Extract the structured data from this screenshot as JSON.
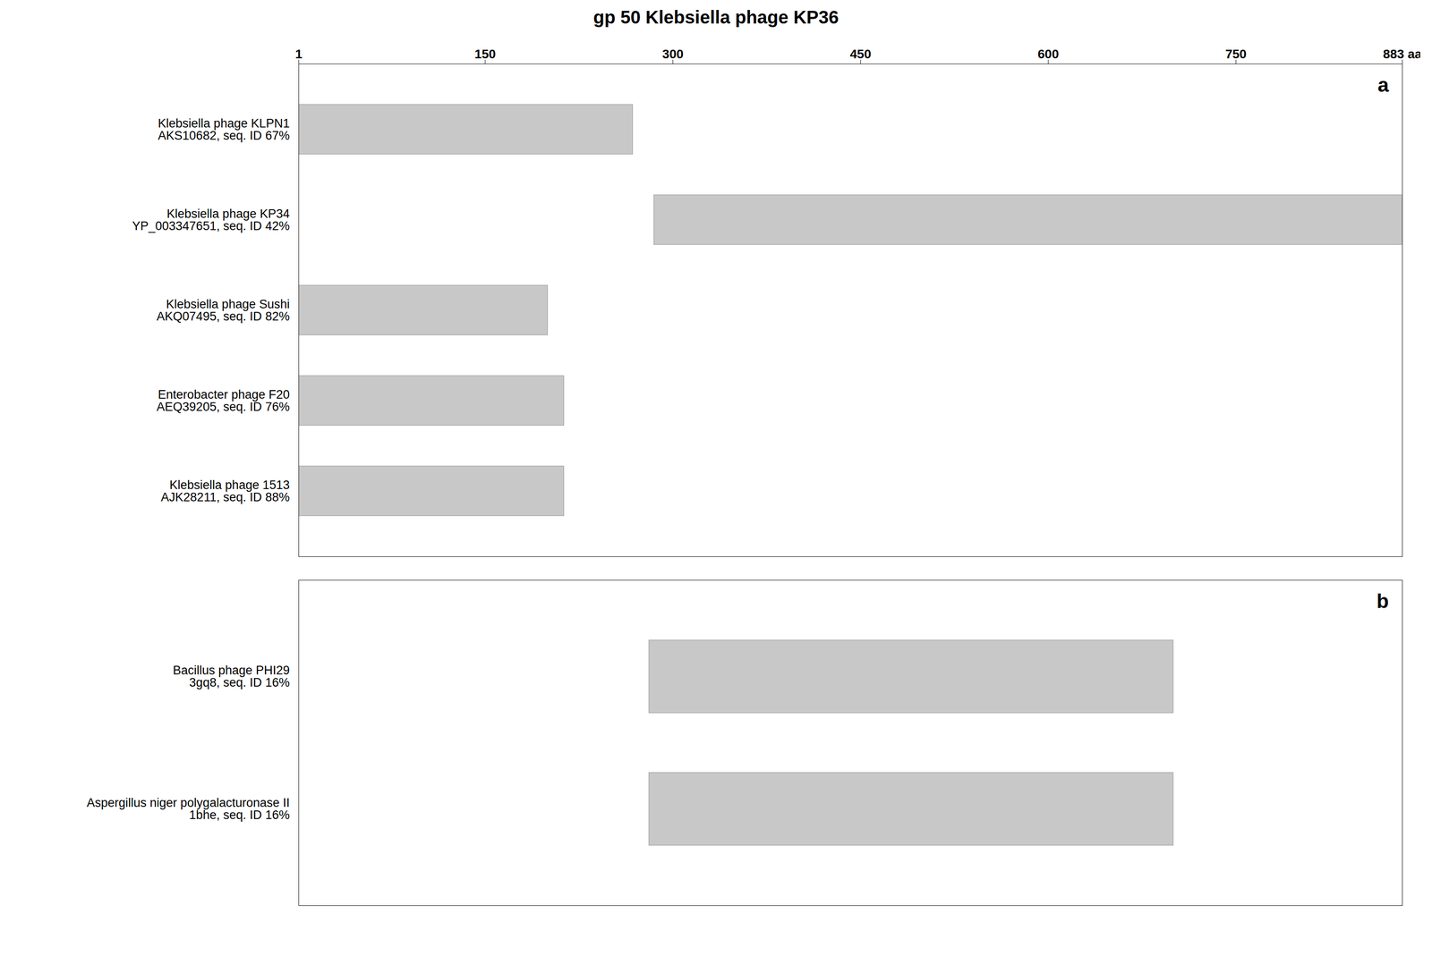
{
  "chart_data": [
    {
      "type": "bar",
      "orientation": "horizontal",
      "title": "gp 50 Klebsiella phage KP36",
      "annotation": "a",
      "categories": [
        "Klebsiella phage KLPN1",
        "Klebsiella phage KP34",
        "Klebsiella phage Sushi",
        "Enterobacter phage F20",
        "Klebsiella phage 1513"
      ],
      "sublabels": [
        "AKS10682, seq. ID 67%",
        "YP_003347651, seq. ID 42%",
        "AKQ07495, seq. ID 82%",
        "AEQ39205, seq. ID 76%",
        "AJK28211, seq. ID 88%"
      ],
      "values": [
        [
          1,
          268
        ],
        [
          285,
          883
        ],
        [
          1,
          200
        ],
        [
          1,
          213
        ],
        [
          1,
          213
        ]
      ],
      "color": "#c8c8c8",
      "xlim": [
        1,
        883
      ],
      "xticks": [
        1,
        150,
        300,
        450,
        600,
        750,
        {
          "value": 883,
          "label": "883 aa"
        }
      ],
      "grid": false
    },
    {
      "type": "bar",
      "orientation": "horizontal",
      "annotation": "b",
      "categories": [
        "Bacillus phage PHI29",
        "Aspergillus niger polygalacturonase II"
      ],
      "sublabels": [
        "3gq8, seq. ID 16%",
        "1bhe, seq. ID 16%"
      ],
      "values": [
        [
          281,
          700
        ],
        [
          281,
          700
        ]
      ],
      "color": "#c8c8c8",
      "xlim": [
        1,
        883
      ],
      "tick_labels": "y",
      "grid": false
    }
  ]
}
